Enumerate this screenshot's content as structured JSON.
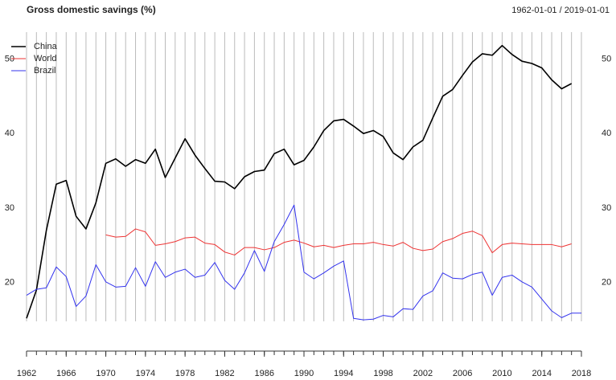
{
  "chart_data": {
    "type": "line",
    "title": "Gross domestic savings (%)",
    "subtitle": "1962-01-01 / 2019-01-01",
    "x": [
      1962,
      1963,
      1964,
      1965,
      1966,
      1967,
      1968,
      1969,
      1970,
      1971,
      1972,
      1973,
      1974,
      1975,
      1976,
      1977,
      1978,
      1979,
      1980,
      1981,
      1982,
      1983,
      1984,
      1985,
      1986,
      1987,
      1988,
      1989,
      1990,
      1991,
      1992,
      1993,
      1994,
      1995,
      1996,
      1997,
      1998,
      1999,
      2000,
      2001,
      2002,
      2003,
      2004,
      2005,
      2006,
      2007,
      2008,
      2009,
      2010,
      2011,
      2012,
      2013,
      2014,
      2015,
      2016,
      2017,
      2018
    ],
    "series": [
      {
        "name": "China",
        "color": "#000000",
        "width": 1.6,
        "values": [
          15.2,
          19,
          27,
          33.2,
          33.7,
          28.9,
          27.2,
          30.7,
          36,
          36.6,
          35.6,
          36.5,
          36,
          37.9,
          34.1,
          36.7,
          39.3,
          37.1,
          35.3,
          33.6,
          33.5,
          32.6,
          34.2,
          34.9,
          35.1,
          37.3,
          37.9,
          35.8,
          36.4,
          38.2,
          40.4,
          41.7,
          41.9,
          41,
          40,
          40.4,
          39.6,
          37.4,
          36.5,
          38.2,
          39.1,
          42.1,
          45,
          45.9,
          47.8,
          49.6,
          50.7,
          50.5,
          51.8,
          50.6,
          49.7,
          49.4,
          48.8,
          47.2,
          46,
          46.7,
          null
        ]
      },
      {
        "name": "World",
        "color": "#ee3333",
        "width": 1,
        "values": [
          null,
          null,
          null,
          null,
          null,
          null,
          null,
          null,
          26.4,
          26.1,
          26.2,
          27.2,
          26.8,
          25,
          25.2,
          25.5,
          26,
          26.1,
          25.3,
          25.1,
          24.1,
          23.7,
          24.7,
          24.7,
          24.4,
          24.7,
          25.4,
          25.7,
          25.3,
          24.8,
          25,
          24.7,
          25,
          25.2,
          25.2,
          25.4,
          25.1,
          24.9,
          25.4,
          24.6,
          24.3,
          24.5,
          25.5,
          25.9,
          26.6,
          26.9,
          26.3,
          24,
          25.1,
          25.3,
          25.2,
          25.1,
          25.1,
          25.1,
          24.8,
          25.2,
          null
        ]
      },
      {
        "name": "Brazil",
        "color": "#3333ee",
        "width": 1,
        "values": [
          18.3,
          19.1,
          19.3,
          22.1,
          20.8,
          16.8,
          18.2,
          22.4,
          20.1,
          19.4,
          19.5,
          22,
          19.5,
          22.8,
          20.7,
          21.4,
          21.8,
          20.7,
          21,
          22.7,
          20.3,
          19.1,
          21.3,
          24.3,
          21.5,
          25.5,
          27.8,
          30.4,
          21.4,
          20.5,
          21.3,
          22.2,
          22.9,
          15.2,
          15,
          15.1,
          15.6,
          15.4,
          16.5,
          16.4,
          18.2,
          18.9,
          21.3,
          20.6,
          20.5,
          21.1,
          21.4,
          18.3,
          20.7,
          21,
          20.1,
          19.4,
          17.8,
          16.2,
          15.3,
          15.9,
          15.9
        ]
      }
    ],
    "xlim": [
      1962,
      2018
    ],
    "xticks": [
      1962,
      1966,
      1970,
      1974,
      1978,
      1982,
      1986,
      1990,
      1994,
      1998,
      2002,
      2006,
      2010,
      2014,
      2018
    ],
    "ylim": [
      14.8,
      53.6
    ],
    "yticks": [
      20,
      30,
      40,
      50
    ],
    "grid": true,
    "legend": "top-left"
  }
}
